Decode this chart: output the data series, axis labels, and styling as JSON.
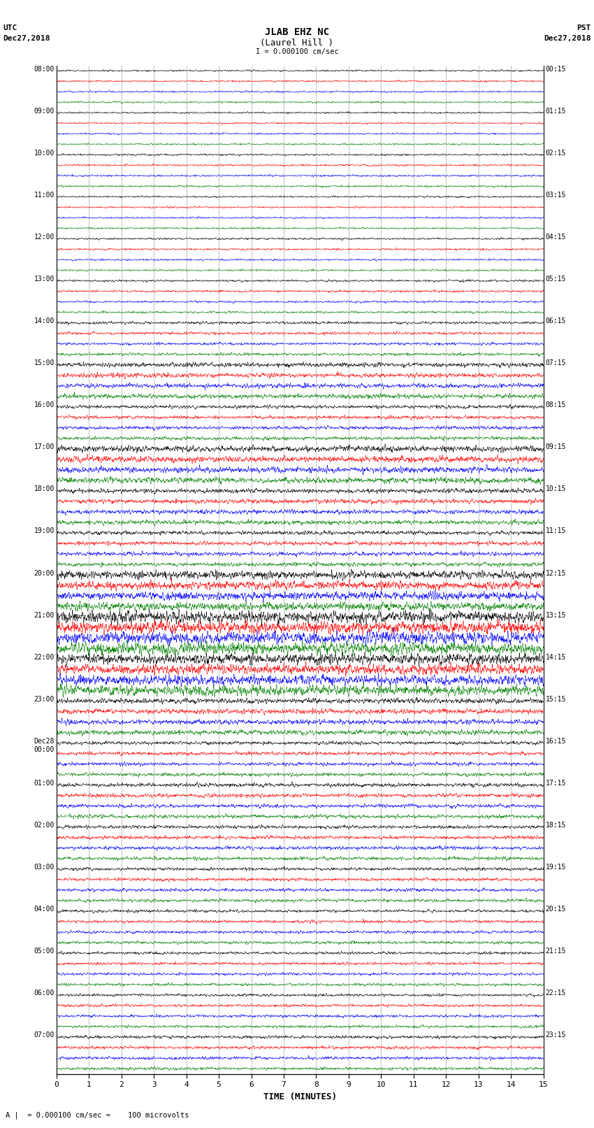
{
  "title_line1": "JLAB EHZ NC",
  "title_line2": "(Laurel Hill )",
  "scale_text": "I = 0.000100 cm/sec",
  "footer_text": "A |  = 0.000100 cm/sec =    100 microvolts",
  "left_header": "UTC",
  "left_date": "Dec27,2018",
  "right_header": "PST",
  "right_date": "Dec27,2018",
  "xlabel": "TIME (MINUTES)",
  "utc_labels": [
    "08:00",
    "09:00",
    "10:00",
    "11:00",
    "12:00",
    "13:00",
    "14:00",
    "15:00",
    "16:00",
    "17:00",
    "18:00",
    "19:00",
    "20:00",
    "21:00",
    "22:00",
    "23:00",
    "Dec28\n00:00",
    "01:00",
    "02:00",
    "03:00",
    "04:00",
    "05:00",
    "06:00",
    "07:00"
  ],
  "pst_labels": [
    "00:15",
    "01:15",
    "02:15",
    "03:15",
    "04:15",
    "05:15",
    "06:15",
    "07:15",
    "08:15",
    "09:15",
    "10:15",
    "11:15",
    "12:15",
    "13:15",
    "14:15",
    "15:15",
    "16:15",
    "17:15",
    "18:15",
    "19:15",
    "20:15",
    "21:15",
    "22:15",
    "23:15"
  ],
  "trace_colors": [
    "black",
    "red",
    "blue",
    "green"
  ],
  "n_rows": 24,
  "traces_per_row": 4,
  "fig_width": 8.5,
  "fig_height": 16.13,
  "bg_color": "white",
  "xmin": 0,
  "xmax": 15,
  "dpi": 100,
  "vline_color": "#888888",
  "amplitude_by_row": [
    0.18,
    0.18,
    0.2,
    0.18,
    0.2,
    0.22,
    0.28,
    0.45,
    0.35,
    0.6,
    0.45,
    0.4,
    0.8,
    1.2,
    1.0,
    0.5,
    0.35,
    0.38,
    0.35,
    0.32,
    0.3,
    0.28,
    0.28,
    0.3
  ],
  "amplitude_scale": 0.28
}
